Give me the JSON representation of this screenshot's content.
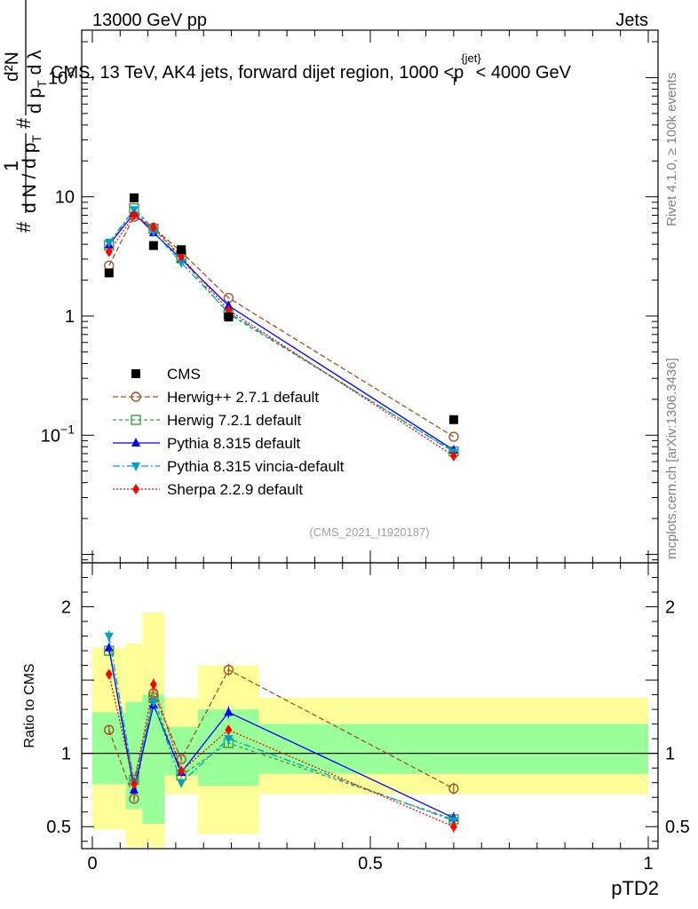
{
  "header": {
    "energy": "13000 GeV pp",
    "category": "Jets"
  },
  "side_text": {
    "rivet": "Rivet 4.1.0, ≥ 100k events",
    "site": "mcplots.cern.ch [arXiv:1306.3436]"
  },
  "analysis_id": "(CMS_2021_I1920187)",
  "chart_data": [
    {
      "type": "scatter",
      "panel": "main",
      "title": "CMS, 13 TeV, AK4 jets, forward dijet region, 1000 <p_T^{jet}< 4000 GeV",
      "title_parts": {
        "pre": "CMS, 13 TeV, AK4 jets, forward dijet region, 1000 <p",
        "sup": "{jet}",
        "sub": "T",
        "post": "< 4000 GeV"
      },
      "ylabel": "1/(dN/dp_T) d²N/(dp_T dλ)",
      "ylabel_parts": {
        "hash": "#",
        "one": "1",
        "dN": "d N / d p",
        "T": "T",
        "d2N": "d²N",
        "dpT": "d p",
        "dl": "d λ"
      },
      "xlabel": "pTD2",
      "yscale": "log",
      "xlim": [
        0,
        1
      ],
      "ylim": [
        0.0085,
        250
      ],
      "yticks": [
        {
          "v": 0.1,
          "b": "10",
          "e": "−1"
        },
        {
          "v": 1,
          "b": "1",
          "e": ""
        },
        {
          "v": 10,
          "b": "10",
          "e": ""
        },
        {
          "v": 100,
          "b": "10",
          "e": "2"
        }
      ],
      "x": [
        0.03,
        0.075,
        0.11,
        0.16,
        0.245,
        0.65
      ],
      "data": {
        "name": "CMS",
        "color": "#000000",
        "marker": "square",
        "y": [
          2.3,
          9.8,
          3.9,
          3.6,
          0.98,
          0.135
        ]
      },
      "series": [
        {
          "name": "Herwig++ 2.7.1 default",
          "color": "#a0522d",
          "marker": "circle-open",
          "dash": "6,3",
          "y": [
            2.65,
            6.8,
            5.5,
            3.45,
            1.42,
            0.097
          ]
        },
        {
          "name": "Herwig 7.2.1 default",
          "color": "#3ca03c",
          "marker": "square-open",
          "dash": "4,3",
          "y": [
            3.9,
            8.0,
            5.4,
            3.05,
            1.04,
            0.073
          ]
        },
        {
          "name": "Pythia 8.315 default",
          "color": "#0000ff",
          "marker": "triangle-up",
          "dash": "",
          "y": [
            3.95,
            7.3,
            5.0,
            3.0,
            1.22,
            0.075
          ]
        },
        {
          "name": "Pythia 8.315 vincia-default",
          "color": "#00a0c8",
          "marker": "triangle-down",
          "dash": "8,3,2,3",
          "y": [
            4.15,
            7.8,
            5.1,
            2.8,
            1.07,
            0.072
          ]
        },
        {
          "name": "Sherpa 2.2.9 default",
          "color": "#ff0000",
          "marker": "diamond",
          "dash": "2,2",
          "y": [
            3.45,
            7.0,
            5.55,
            3.15,
            1.12,
            0.067
          ]
        }
      ]
    },
    {
      "type": "scatter",
      "panel": "ratio",
      "ylabel": "Ratio to CMS",
      "xlabel": "pTD2",
      "ylim": [
        0.35,
        2.3
      ],
      "yticks": [
        0.5,
        1,
        2
      ],
      "xticks": [
        0,
        0.5,
        1
      ],
      "xtick_labels": [
        "0",
        "0.5",
        "1"
      ],
      "reference": 1,
      "bands": [
        {
          "x0": 0.0,
          "x1": 0.06,
          "yellow": [
            0.48,
            1.72
          ],
          "green": [
            0.79,
            1.28
          ]
        },
        {
          "x0": 0.06,
          "x1": 0.09,
          "yellow": [
            0.36,
            1.75
          ],
          "green": [
            0.62,
            1.35
          ]
        },
        {
          "x0": 0.09,
          "x1": 0.13,
          "yellow": [
            0.36,
            1.96
          ],
          "green": [
            0.52,
            1.4
          ]
        },
        {
          "x0": 0.13,
          "x1": 0.19,
          "yellow": [
            0.72,
            1.38
          ],
          "green": [
            0.85,
            1.18
          ]
        },
        {
          "x0": 0.19,
          "x1": 0.3,
          "yellow": [
            0.45,
            1.6
          ],
          "green": [
            0.78,
            1.3
          ]
        },
        {
          "x0": 0.3,
          "x1": 1.0,
          "yellow": [
            0.72,
            1.38
          ],
          "green": [
            0.86,
            1.2
          ]
        }
      ],
      "x": [
        0.03,
        0.075,
        0.11,
        0.16,
        0.245,
        0.65
      ],
      "series": [
        {
          "name": "Herwig++ 2.7.1 default",
          "y": [
            1.16,
            0.69,
            1.41,
            0.96,
            1.57,
            0.76
          ],
          "err": [
            0.03,
            0.02,
            0.03,
            0.02,
            0.04,
            0.04
          ]
        },
        {
          "name": "Herwig 7.2.1 default",
          "y": [
            1.7,
            0.82,
            1.38,
            0.85,
            1.07,
            0.55
          ],
          "err": [
            0.03,
            0.02,
            0.03,
            0.02,
            0.03,
            0.03
          ]
        },
        {
          "name": "Pythia 8.315 default",
          "y": [
            1.72,
            0.75,
            1.33,
            0.87,
            1.28,
            0.56
          ],
          "err": [
            0.03,
            0.02,
            0.03,
            0.02,
            0.04,
            0.04
          ]
        },
        {
          "name": "Pythia 8.315 vincia-default",
          "y": [
            1.8,
            0.8,
            1.35,
            0.8,
            1.1,
            0.54
          ],
          "err": [
            0.04,
            0.02,
            0.03,
            0.02,
            0.03,
            0.04
          ]
        },
        {
          "name": "Sherpa 2.2.9 default",
          "y": [
            1.54,
            0.79,
            1.47,
            0.88,
            1.16,
            0.5
          ],
          "err": [
            0.03,
            0.02,
            0.04,
            0.02,
            0.03,
            0.04
          ]
        }
      ]
    }
  ]
}
